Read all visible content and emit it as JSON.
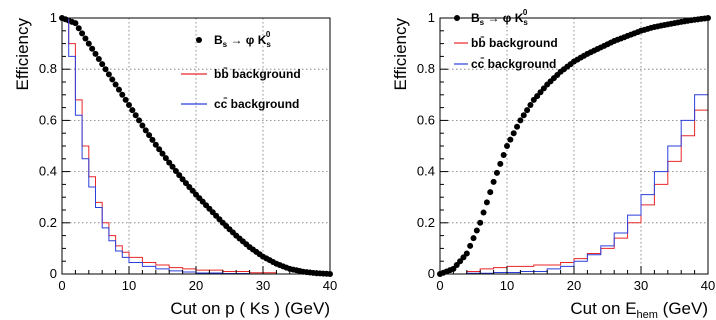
{
  "chart_data": [
    {
      "type": "scatter",
      "panel": "left",
      "ylabel": "Efficiency",
      "xlabel_prefix": "Cut on",
      "xlabel_symbol": "p",
      "xlabel_suffix": "( Ks ) (GeV)",
      "xlim": [
        0,
        40
      ],
      "ylim": [
        0,
        1
      ],
      "xticks": [
        "0",
        "10",
        "20",
        "30",
        "40"
      ],
      "yticks": [
        "0",
        "0.2",
        "0.4",
        "0.6",
        "0.8",
        "1"
      ],
      "grid": true,
      "legend_position": "top-right",
      "series": [
        {
          "name": "B_s → φ K_s^0",
          "kind": "points",
          "color": "#000000",
          "x": [
            0,
            2,
            4,
            6,
            8,
            10,
            12,
            14,
            16,
            18,
            20,
            22,
            24,
            26,
            28,
            30,
            32,
            34,
            36,
            38,
            40
          ],
          "values": [
            1.0,
            0.98,
            0.9,
            0.82,
            0.74,
            0.66,
            0.58,
            0.505,
            0.435,
            0.37,
            0.31,
            0.255,
            0.2,
            0.15,
            0.105,
            0.068,
            0.04,
            0.02,
            0.009,
            0.003,
            0.0
          ]
        },
        {
          "name": "bb̄ background",
          "kind": "step",
          "color": "#e8262a",
          "x": [
            0,
            1,
            2,
            3,
            4,
            5,
            6,
            7,
            8,
            9,
            10,
            12,
            14,
            16,
            18,
            20,
            24,
            28,
            32,
            40
          ],
          "values": [
            1.0,
            0.9,
            0.68,
            0.5,
            0.38,
            0.28,
            0.2,
            0.15,
            0.11,
            0.085,
            0.065,
            0.045,
            0.035,
            0.025,
            0.02,
            0.015,
            0.01,
            0.005,
            0.0,
            0.0
          ]
        },
        {
          "name": "cc̄ background",
          "kind": "step",
          "color": "#2b3fdc",
          "x": [
            0,
            1,
            2,
            3,
            4,
            5,
            6,
            7,
            8,
            9,
            10,
            12,
            14,
            16,
            18,
            20,
            24,
            28,
            32,
            40
          ],
          "values": [
            1.0,
            0.85,
            0.62,
            0.45,
            0.34,
            0.26,
            0.18,
            0.13,
            0.09,
            0.065,
            0.045,
            0.03,
            0.02,
            0.012,
            0.008,
            0.004,
            0.002,
            0.0,
            0.0,
            0.0
          ]
        }
      ]
    },
    {
      "type": "scatter",
      "panel": "right",
      "ylabel": "Efficiency",
      "xlabel_prefix": "Cut on",
      "xlabel_symbol": "E",
      "xlabel_sub": "hem",
      "xlabel_suffix": "(GeV)",
      "xlim": [
        0,
        40
      ],
      "ylim": [
        0,
        1
      ],
      "xticks": [
        "0",
        "10",
        "20",
        "30",
        "40"
      ],
      "yticks": [
        "0",
        "0.2",
        "0.4",
        "0.6",
        "0.8",
        "1"
      ],
      "grid": true,
      "legend_position": "top-left",
      "series": [
        {
          "name": "B_s → φ K_s^0",
          "kind": "points",
          "color": "#000000",
          "x": [
            0,
            2,
            4,
            6,
            8,
            10,
            12,
            14,
            16,
            18,
            20,
            22,
            24,
            26,
            28,
            30,
            32,
            34,
            36,
            38,
            40
          ],
          "values": [
            0.0,
            0.02,
            0.08,
            0.2,
            0.36,
            0.5,
            0.6,
            0.68,
            0.74,
            0.79,
            0.83,
            0.86,
            0.885,
            0.91,
            0.93,
            0.95,
            0.965,
            0.975,
            0.985,
            0.993,
            1.0
          ]
        },
        {
          "name": "bb̄ background",
          "kind": "step",
          "color": "#e8262a",
          "x": [
            0,
            4,
            6,
            8,
            10,
            14,
            18,
            20,
            22,
            24,
            26,
            28,
            30,
            32,
            34,
            36,
            38,
            40
          ],
          "values": [
            0.0,
            0.01,
            0.02,
            0.025,
            0.03,
            0.035,
            0.045,
            0.06,
            0.08,
            0.1,
            0.14,
            0.2,
            0.27,
            0.35,
            0.44,
            0.54,
            0.64,
            0.76
          ]
        },
        {
          "name": "cc̄ background",
          "kind": "step",
          "color": "#2b3fdc",
          "x": [
            0,
            4,
            8,
            12,
            16,
            18,
            20,
            22,
            24,
            26,
            28,
            30,
            32,
            34,
            36,
            38,
            40
          ],
          "values": [
            0.0,
            0.003,
            0.006,
            0.01,
            0.02,
            0.03,
            0.05,
            0.075,
            0.11,
            0.16,
            0.23,
            0.31,
            0.4,
            0.5,
            0.6,
            0.7,
            0.81
          ]
        }
      ]
    }
  ]
}
